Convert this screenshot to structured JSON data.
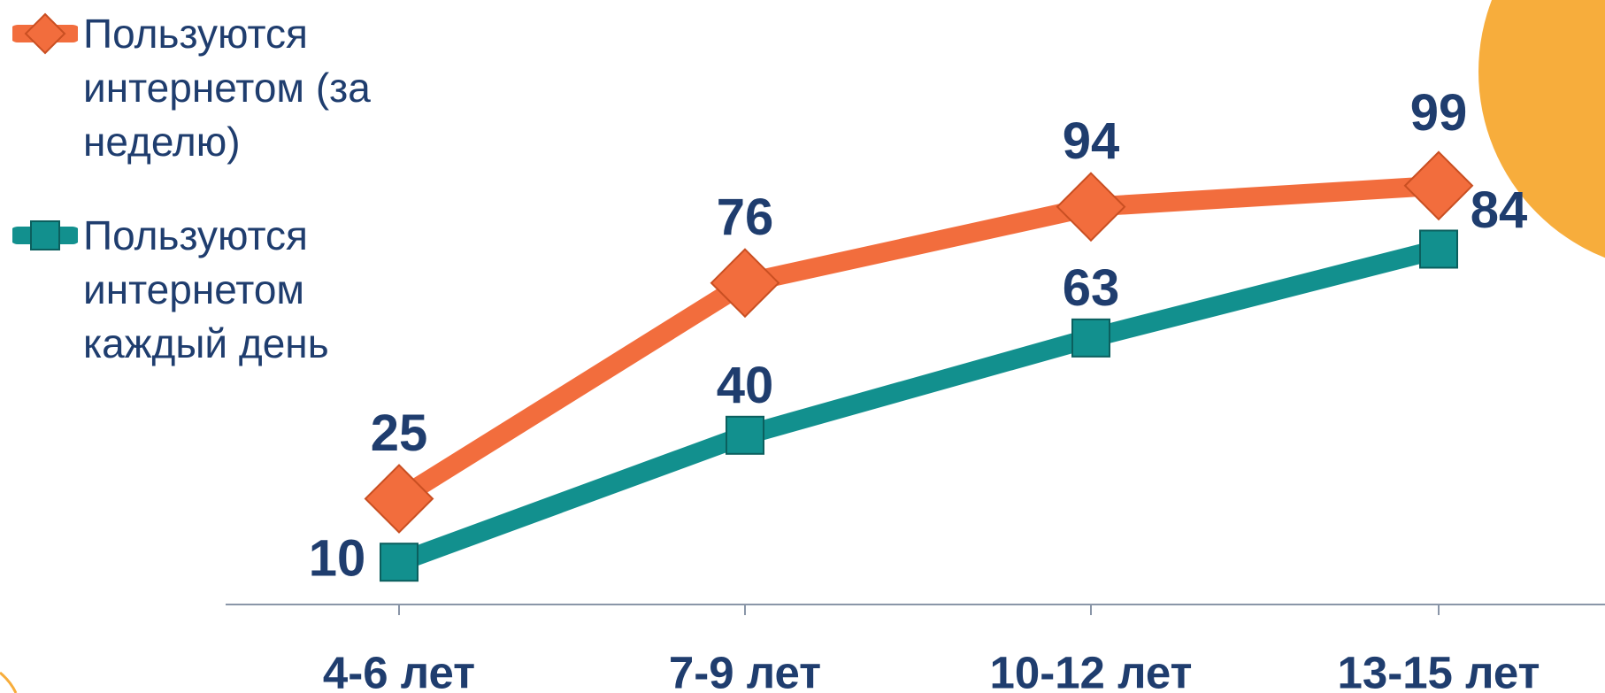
{
  "chart_data": {
    "type": "line",
    "categories": [
      "4-6 лет",
      "7-9 лет",
      "10-12 лет",
      "13-15 лет"
    ],
    "series": [
      {
        "name": "Пользуются интернетом (за неделю)",
        "color": "#f26d3d",
        "marker": "diamond",
        "values": [
          25,
          76,
          94,
          99
        ]
      },
      {
        "name": "Пользуются интернетом каждый день",
        "color": "#12908e",
        "marker": "square",
        "values": [
          10,
          40,
          63,
          84
        ]
      }
    ],
    "ylim": [
      0,
      100
    ]
  }
}
